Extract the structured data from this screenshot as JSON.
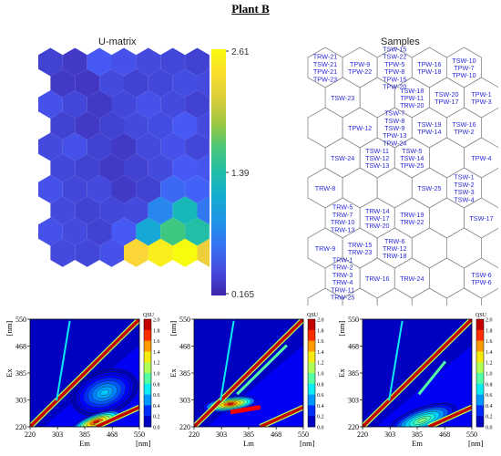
{
  "page_title": "Plant B",
  "colors": {
    "umatrix_low": "#3b2f99",
    "umatrix_high": "#f5ee3b",
    "sample_text": "#2a2ad8",
    "cell_edge": "#888888"
  },
  "chart_data": [
    {
      "type": "heatmap",
      "title": "U-matrix",
      "grid": {
        "cols": 7,
        "rows": 10,
        "layout": "hexagonal"
      },
      "colorbar": {
        "min": 0.165,
        "mid": 1.39,
        "max": 2.61,
        "tick_labels": [
          "2.61",
          "1.39",
          "0.165"
        ]
      },
      "values": [
        [
          0.35,
          0.3,
          0.5,
          0.45,
          0.4,
          0.38,
          0.35
        ],
        [
          0.3,
          0.28,
          0.4,
          0.35,
          0.38,
          0.42,
          0.4
        ],
        [
          0.45,
          0.38,
          0.3,
          0.38,
          0.45,
          0.4,
          0.35
        ],
        [
          0.35,
          0.3,
          0.35,
          0.4,
          0.42,
          0.5,
          0.4
        ],
        [
          0.4,
          0.45,
          0.35,
          0.3,
          0.4,
          0.45,
          0.38
        ],
        [
          0.38,
          0.35,
          0.3,
          0.35,
          0.4,
          0.5,
          0.48
        ],
        [
          0.45,
          0.38,
          0.4,
          0.3,
          0.35,
          0.6,
          0.55
        ],
        [
          0.4,
          0.35,
          0.38,
          0.4,
          0.8,
          1.3,
          0.7
        ],
        [
          0.45,
          0.4,
          0.35,
          0.5,
          1.1,
          1.6,
          1.4
        ],
        [
          0.4,
          0.38,
          0.45,
          2.3,
          2.5,
          2.61,
          2.2
        ]
      ]
    },
    {
      "type": "table",
      "title": "Samples",
      "grid": {
        "cols": 7,
        "rows": 10,
        "layout": "hexagonal"
      },
      "cells": [
        {
          "r": 0,
          "c": 0,
          "labels": [
            "TRW-21",
            "TSW-21",
            "TPW-21",
            "TPW-23"
          ]
        },
        {
          "r": 0,
          "c": 1,
          "labels": [
            "TPW-9",
            "TPW-22"
          ]
        },
        {
          "r": 0,
          "c": 2,
          "labels": [
            "TSW-15",
            "TSW-22",
            "TPW-5",
            "TPW-8",
            "TPW-15",
            "TPW-20"
          ]
        },
        {
          "r": 0,
          "c": 3,
          "labels": [
            "TPW-16",
            "TPW-18"
          ]
        },
        {
          "r": 0,
          "c": 4,
          "labels": [
            "TSW-10",
            "TPW-7",
            "TPW-10"
          ]
        },
        {
          "r": 1,
          "c": 0,
          "labels": [
            "TSW-23"
          ]
        },
        {
          "r": 1,
          "c": 2,
          "labels": [
            "TSW-18",
            "TPW-11",
            "TRW-20"
          ]
        },
        {
          "r": 1,
          "c": 3,
          "labels": [
            "TSW-20",
            "TPW-17"
          ]
        },
        {
          "r": 1,
          "c": 4,
          "labels": [
            "TPW-1",
            "TPW-3"
          ]
        },
        {
          "r": 2,
          "c": 1,
          "labels": [
            "TPW-12"
          ]
        },
        {
          "r": 2,
          "c": 2,
          "labels": [
            "TSW-7",
            "TSW-8",
            "TSW-9",
            "TPW-13",
            "TPW-24"
          ]
        },
        {
          "r": 2,
          "c": 3,
          "labels": [
            "TSW-19",
            "TPW-14"
          ]
        },
        {
          "r": 2,
          "c": 4,
          "labels": [
            "TSW-16",
            "TPW-2"
          ]
        },
        {
          "r": 3,
          "c": 0,
          "labels": [
            "TSW-24"
          ]
        },
        {
          "r": 3,
          "c": 1,
          "labels": [
            "TSW-11",
            "TSW-12",
            "TSW-13"
          ]
        },
        {
          "r": 3,
          "c": 2,
          "labels": [
            "TSW-5",
            "TSW-14",
            "TPW-25"
          ]
        },
        {
          "r": 3,
          "c": 4,
          "labels": [
            "TPW-4"
          ]
        },
        {
          "r": 4,
          "c": 0,
          "labels": [
            "TRW-8"
          ]
        },
        {
          "r": 4,
          "c": 3,
          "labels": [
            "TSW-25"
          ]
        },
        {
          "r": 4,
          "c": 4,
          "labels": [
            "TSW-1",
            "TSW-2",
            "TSW-3",
            "TSW-4"
          ]
        },
        {
          "r": 5,
          "c": 0,
          "labels": [
            "TRW-5",
            "TRW-7",
            "TRW-10",
            "TRW-13"
          ]
        },
        {
          "r": 5,
          "c": 1,
          "labels": [
            "TRW-14",
            "TRW-17",
            "TRW-20"
          ]
        },
        {
          "r": 5,
          "c": 2,
          "labels": [
            "TRW-19",
            "TRW-22"
          ]
        },
        {
          "r": 5,
          "c": 4,
          "labels": [
            "TSW-17"
          ]
        },
        {
          "r": 6,
          "c": 0,
          "labels": [
            "TRW-9"
          ]
        },
        {
          "r": 6,
          "c": 1,
          "labels": [
            "TRW-15",
            "TRW-23"
          ]
        },
        {
          "r": 6,
          "c": 2,
          "labels": [
            "TRW-6",
            "TRW-12",
            "TRW-18"
          ]
        },
        {
          "r": 7,
          "c": 0,
          "labels": [
            "TRW-1",
            "TRW-2",
            "TRW-3",
            "TRW-4",
            "TRW-11",
            "TRW-25"
          ]
        },
        {
          "r": 7,
          "c": 1,
          "labels": [
            "TRW-16"
          ]
        },
        {
          "r": 7,
          "c": 2,
          "labels": [
            "TRW-24"
          ]
        },
        {
          "r": 7,
          "c": 4,
          "labels": [
            "TSW-6",
            "TPW-6"
          ]
        }
      ]
    },
    {
      "type": "heatmap",
      "title": "",
      "xlabel": "Em",
      "xunit": "[nm]",
      "ylabel": "Ex",
      "yunit": "[nm]",
      "xticks": [
        "220",
        "303",
        "385",
        "468",
        "550"
      ],
      "yticks": [
        "550",
        "468",
        "385",
        "303",
        "220"
      ],
      "xlim": [
        220,
        550
      ],
      "ylim": [
        220,
        550
      ],
      "colorbar": {
        "title": "QSU",
        "ticks": [
          "2.0",
          "1.8",
          "1.6",
          "1.4",
          "1.2",
          "1.0",
          "0.8",
          "0.6",
          "0.4",
          "0.2",
          "0.0"
        ]
      },
      "peaks": [
        {
          "em": 445,
          "ex": 325,
          "level": 0.6
        },
        {
          "em": 420,
          "ex": 235,
          "level": 1.8
        }
      ]
    },
    {
      "type": "heatmap",
      "title": "",
      "xlabel": "Lm",
      "xunit": "[nm]",
      "ylabel": "Ex",
      "yunit": "[nm]",
      "xticks": [
        "220",
        "303",
        "385",
        "468",
        "550"
      ],
      "yticks": [
        "550",
        "468",
        "385",
        "303",
        "220"
      ],
      "xlim": [
        220,
        550
      ],
      "ylim": [
        220,
        550
      ],
      "colorbar": {
        "title": "QSU",
        "ticks": [
          "2.0",
          "1.8",
          "1.6",
          "1.4",
          "1.2",
          "1.0",
          "0.8",
          "0.6",
          "0.4",
          "0.2",
          "0.0"
        ]
      },
      "peaks": [
        {
          "em": 330,
          "ex": 290,
          "level": 1.8
        }
      ]
    },
    {
      "type": "heatmap",
      "title": "",
      "xlabel": "Em",
      "xunit": "[nm]",
      "ylabel": "Ex",
      "yunit": "[nm]",
      "xticks": [
        "220",
        "303",
        "385",
        "468",
        "550"
      ],
      "yticks": [
        "550",
        "468",
        "385",
        "303",
        "220"
      ],
      "xlim": [
        220,
        550
      ],
      "ylim": [
        220,
        550
      ],
      "colorbar": {
        "title": "QSU",
        "ticks": [
          "2.0",
          "1.8",
          "1.6",
          "1.4",
          "1.2",
          "1.0",
          "0.8",
          "0.6",
          "0.4",
          "0.2",
          "0.0"
        ]
      },
      "peaks": [
        {
          "em": 400,
          "ex": 240,
          "level": 1.0
        }
      ]
    }
  ]
}
